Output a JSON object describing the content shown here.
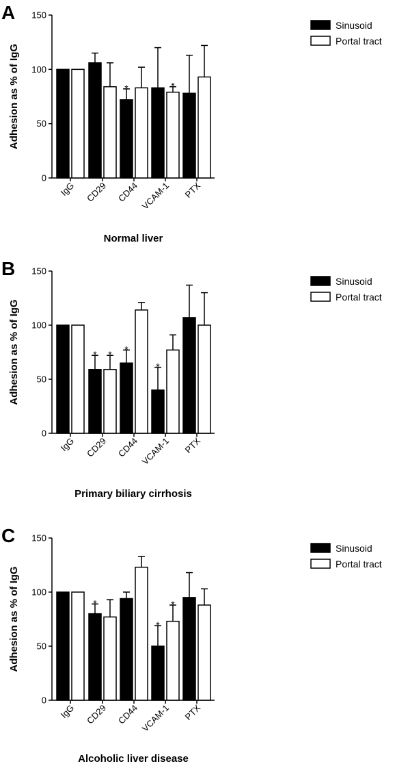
{
  "chart_data": [
    {
      "type": "bar",
      "panel_label": "A",
      "title": "",
      "xlabel": "Normal liver",
      "ylabel": "Adhesion as % of IgG",
      "categories": [
        "IgG",
        "CD29",
        "CD44",
        "VCAM-1",
        "PTX"
      ],
      "ylim": [
        0,
        150
      ],
      "yticks": [
        0,
        50,
        100,
        150
      ],
      "legend_position": "top-right",
      "grid": false,
      "series": [
        {
          "name": "Sinusoid",
          "color": "#000000",
          "values": [
            100,
            106,
            72,
            83,
            78
          ],
          "errors": [
            0,
            9,
            10,
            37,
            35
          ],
          "significant": [
            false,
            false,
            true,
            false,
            false
          ]
        },
        {
          "name": "Portal tract",
          "color": "#ffffff",
          "values": [
            100,
            84,
            83,
            79,
            93
          ],
          "errors": [
            0,
            22,
            19,
            5,
            29
          ],
          "significant": [
            false,
            false,
            false,
            true,
            false
          ]
        }
      ]
    },
    {
      "type": "bar",
      "panel_label": "B",
      "title": "",
      "xlabel": "Primary biliary cirrhosis",
      "ylabel": "Adhesion as % of IgG",
      "categories": [
        "IgG",
        "CD29",
        "CD44",
        "VCAM-1",
        "PTX"
      ],
      "ylim": [
        0,
        150
      ],
      "yticks": [
        0,
        50,
        100,
        150
      ],
      "legend_position": "top-right",
      "grid": false,
      "series": [
        {
          "name": "Sinusoid",
          "color": "#000000",
          "values": [
            100,
            59,
            65,
            40,
            107
          ],
          "errors": [
            0,
            13,
            12,
            21,
            30
          ],
          "significant": [
            false,
            true,
            true,
            true,
            false
          ]
        },
        {
          "name": "Portal tract",
          "color": "#ffffff",
          "values": [
            100,
            59,
            114,
            77,
            100
          ],
          "errors": [
            0,
            13,
            7,
            14,
            30
          ],
          "significant": [
            false,
            true,
            false,
            false,
            false
          ]
        }
      ]
    },
    {
      "type": "bar",
      "panel_label": "C",
      "title": "",
      "xlabel": "Alcoholic liver disease",
      "ylabel": "Adhesion as % of IgG",
      "categories": [
        "IgG",
        "CD29",
        "CD44",
        "VCAM-1",
        "PTX"
      ],
      "ylim": [
        0,
        150
      ],
      "yticks": [
        0,
        50,
        100,
        150
      ],
      "legend_position": "top-right",
      "grid": false,
      "series": [
        {
          "name": "Sinusoid",
          "color": "#000000",
          "values": [
            100,
            80,
            94,
            50,
            95
          ],
          "errors": [
            0,
            9,
            6,
            19,
            23
          ],
          "significant": [
            false,
            true,
            false,
            true,
            false
          ]
        },
        {
          "name": "Portal tract",
          "color": "#ffffff",
          "values": [
            100,
            77,
            123,
            73,
            88
          ],
          "errors": [
            0,
            16,
            10,
            15,
            15
          ],
          "significant": [
            false,
            false,
            false,
            true,
            false
          ]
        }
      ]
    }
  ],
  "annotation_symbol": "*"
}
